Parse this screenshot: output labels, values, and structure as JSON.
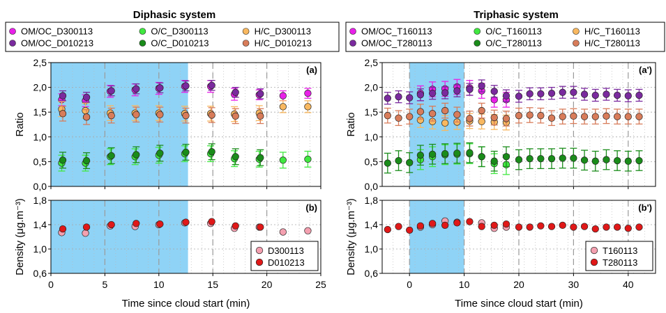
{
  "colors": {
    "shade": "#8fd3f6",
    "om_a": "#e820e8",
    "om_b": "#7a2a9e",
    "o_a": "#40e840",
    "o_b": "#1a8c1a",
    "h_a": "#f8b860",
    "h_b": "#d87c5a",
    "d_a": "#f4a0b0",
    "d_b": "#e01818"
  },
  "chart_data": [
    {
      "type": "scatter",
      "title": "Diphasic system",
      "tag": "(a)",
      "ylabel": "Ratio",
      "xlim": [
        0,
        25
      ],
      "ylim": [
        0,
        2.5
      ],
      "yticks": [
        "0,0",
        "0,5",
        "1,0",
        "1,5",
        "2,0",
        "2,5"
      ],
      "shaded_x": [
        0,
        12.7
      ],
      "series": [
        {
          "name": "OM/OC_D300113",
          "color_key": "om_a",
          "x": [
            1,
            3.2,
            5.5,
            7.8,
            10,
            12.4,
            14.8,
            17,
            19.3,
            21.5,
            23.8
          ],
          "y": [
            1.75,
            1.73,
            1.92,
            1.95,
            1.98,
            2.02,
            2.02,
            1.86,
            1.85,
            1.83,
            1.88
          ],
          "err": [
            0.12,
            0.12,
            0.12,
            0.12,
            0.12,
            0.12,
            0.12,
            0.12,
            0.1,
            0.1,
            0.1
          ]
        },
        {
          "name": "OM/OC_D010213",
          "color_key": "om_b",
          "x": [
            1.1,
            3.3,
            5.6,
            7.9,
            10.1,
            12.5,
            14.9,
            17.1,
            19.4
          ],
          "y": [
            1.83,
            1.8,
            1.93,
            1.97,
            1.99,
            2.03,
            2.04,
            1.9,
            1.87
          ],
          "err": [
            0.1,
            0.1,
            0.1,
            0.1,
            0.1,
            0.1,
            0.1,
            0.1,
            0.1
          ]
        },
        {
          "name": "O/C_D300113",
          "color_key": "o_a",
          "x": [
            1,
            3.2,
            5.5,
            7.8,
            10,
            12.4,
            14.8,
            17,
            19.3,
            21.5,
            23.8
          ],
          "y": [
            0.47,
            0.47,
            0.6,
            0.6,
            0.63,
            0.66,
            0.66,
            0.56,
            0.55,
            0.53,
            0.55
          ],
          "err": [
            0.16,
            0.16,
            0.16,
            0.16,
            0.16,
            0.16,
            0.16,
            0.16,
            0.16,
            0.16,
            0.16
          ]
        },
        {
          "name": "O/C_D010213",
          "color_key": "o_b",
          "x": [
            1.1,
            3.3,
            5.6,
            7.9,
            10.1,
            12.5,
            14.9,
            17.1,
            19.4
          ],
          "y": [
            0.53,
            0.52,
            0.62,
            0.64,
            0.67,
            0.69,
            0.7,
            0.6,
            0.58
          ],
          "err": [
            0.16,
            0.16,
            0.16,
            0.16,
            0.16,
            0.16,
            0.16,
            0.16,
            0.16
          ]
        },
        {
          "name": "H/C_D300113",
          "color_key": "h_a",
          "x": [
            1,
            3.2,
            5.5,
            7.8,
            10,
            12.4,
            14.8,
            17,
            19.3,
            21.5,
            23.8
          ],
          "y": [
            1.56,
            1.53,
            1.48,
            1.48,
            1.48,
            1.47,
            1.47,
            1.46,
            1.48,
            1.61,
            1.61
          ],
          "err": [
            0.15,
            0.15,
            0.15,
            0.15,
            0.15,
            0.15,
            0.15,
            0.15,
            0.15,
            0.12,
            0.12
          ]
        },
        {
          "name": "H/C_D010213",
          "color_key": "h_b",
          "x": [
            1.1,
            3.3,
            5.6,
            7.9,
            10.1,
            12.5,
            14.9,
            17.1,
            19.4
          ],
          "y": [
            1.47,
            1.4,
            1.43,
            1.45,
            1.45,
            1.43,
            1.44,
            1.42,
            1.42
          ],
          "err": [
            0.15,
            0.15,
            0.15,
            0.15,
            0.15,
            0.15,
            0.15,
            0.15,
            0.15
          ]
        }
      ]
    },
    {
      "type": "scatter",
      "title": "Triphasic system",
      "tag": "(a')",
      "ylabel": "Ratio",
      "xlim": [
        -5,
        45
      ],
      "ylim": [
        0,
        2.5
      ],
      "yticks": [
        "0,0",
        "0,5",
        "1,0",
        "1,5",
        "2,0",
        "2,5"
      ],
      "shaded_x": [
        0,
        10
      ],
      "series": [
        {
          "name": "OM/OC_T160113",
          "color_key": "om_a",
          "x": [
            2,
            4.2,
            6.5,
            8.7,
            11,
            13.2,
            15.5,
            17.7
          ],
          "y": [
            1.88,
            1.96,
            1.97,
            2.01,
            1.99,
            1.93,
            1.75,
            1.75
          ],
          "err": [
            0.15,
            0.15,
            0.15,
            0.15,
            0.15,
            0.15,
            0.15,
            0.15
          ]
        },
        {
          "name": "OM/OC_T280113",
          "color_key": "om_b",
          "x": [
            -4,
            -2,
            0,
            2,
            4.2,
            6.5,
            8.7,
            11,
            13.2,
            15.5,
            17.7,
            20,
            22,
            24,
            26,
            28,
            30,
            32,
            34,
            36,
            38,
            40,
            42
          ],
          "y": [
            1.78,
            1.81,
            1.79,
            1.85,
            1.88,
            1.89,
            1.93,
            1.96,
            2.03,
            1.92,
            1.83,
            1.82,
            1.87,
            1.87,
            1.88,
            1.9,
            1.9,
            1.86,
            1.84,
            1.86,
            1.84,
            1.83,
            1.84
          ],
          "err": [
            0.12,
            0.12,
            0.12,
            0.12,
            0.12,
            0.12,
            0.12,
            0.12,
            0.12,
            0.12,
            0.12,
            0.12,
            0.12,
            0.12,
            0.12,
            0.12,
            0.12,
            0.12,
            0.12,
            0.12,
            0.12,
            0.12,
            0.12
          ]
        },
        {
          "name": "O/C_T160113",
          "color_key": "o_a",
          "x": [
            2,
            4.2,
            6.5,
            8.7,
            11,
            13.2,
            15.5,
            17.7
          ],
          "y": [
            0.54,
            0.6,
            0.64,
            0.65,
            0.66,
            0.6,
            0.46,
            0.44
          ],
          "err": [
            0.2,
            0.2,
            0.2,
            0.2,
            0.2,
            0.2,
            0.2,
            0.2
          ]
        },
        {
          "name": "O/C_T280113",
          "color_key": "o_b",
          "x": [
            -4,
            -2,
            0,
            2,
            4.2,
            6.5,
            8.7,
            11,
            13.2,
            15.5,
            17.7,
            20,
            22,
            24,
            26,
            28,
            30,
            32,
            34,
            36,
            38,
            40,
            42
          ],
          "y": [
            0.47,
            0.52,
            0.48,
            0.63,
            0.65,
            0.66,
            0.67,
            0.68,
            0.6,
            0.51,
            0.6,
            0.54,
            0.56,
            0.56,
            0.56,
            0.57,
            0.57,
            0.53,
            0.51,
            0.54,
            0.52,
            0.51,
            0.52
          ],
          "err": [
            0.2,
            0.2,
            0.2,
            0.2,
            0.2,
            0.2,
            0.2,
            0.2,
            0.2,
            0.2,
            0.2,
            0.2,
            0.2,
            0.2,
            0.2,
            0.2,
            0.2,
            0.2,
            0.2,
            0.2,
            0.2,
            0.2,
            0.2
          ]
        },
        {
          "name": "H/C_T160113",
          "color_key": "h_a",
          "x": [
            2,
            4.2,
            6.5,
            8.7,
            11,
            13.2,
            15.5,
            17.7
          ],
          "y": [
            1.34,
            1.31,
            1.28,
            1.3,
            1.32,
            1.31,
            1.3,
            1.29
          ],
          "err": [
            0.15,
            0.15,
            0.15,
            0.15,
            0.15,
            0.15,
            0.15,
            0.15
          ]
        },
        {
          "name": "H/C_T280113",
          "color_key": "h_b",
          "x": [
            -4,
            -2,
            0,
            2,
            4.2,
            6.5,
            8.7,
            11,
            13.2,
            15.5,
            17.7,
            20,
            22,
            24,
            26,
            28,
            30,
            32,
            34,
            36,
            38,
            40,
            42
          ],
          "y": [
            1.43,
            1.38,
            1.41,
            1.51,
            1.47,
            1.53,
            1.45,
            1.37,
            1.53,
            1.39,
            1.37,
            1.43,
            1.44,
            1.43,
            1.38,
            1.41,
            1.42,
            1.41,
            1.41,
            1.42,
            1.41,
            1.41,
            1.41
          ],
          "err": [
            0.15,
            0.15,
            0.15,
            0.15,
            0.15,
            0.15,
            0.15,
            0.15,
            0.15,
            0.15,
            0.15,
            0.15,
            0.15,
            0.15,
            0.15,
            0.15,
            0.15,
            0.15,
            0.15,
            0.15,
            0.15,
            0.15,
            0.15
          ]
        }
      ]
    },
    {
      "type": "scatter",
      "tag": "(b)",
      "ylabel": "Density  (μg.m⁻³)",
      "xlabel": "Time since cloud start (min)",
      "xlim": [
        0,
        25
      ],
      "ylim": [
        0.6,
        1.8
      ],
      "xticks": [
        "0",
        "5",
        "10",
        "15",
        "20",
        "25"
      ],
      "yticks": [
        "0,6",
        "1,0",
        "1,4",
        "1,8"
      ],
      "shaded_x": [
        0,
        12.7
      ],
      "legend": "bottom-right",
      "series": [
        {
          "name": "D300113",
          "color_key": "d_a",
          "x": [
            1,
            3.2,
            5.5,
            7.8,
            10,
            12.4,
            14.8,
            17,
            19.3,
            21.5,
            23.8
          ],
          "y": [
            1.27,
            1.26,
            1.38,
            1.37,
            1.4,
            1.43,
            1.42,
            1.34,
            1.36,
            1.28,
            1.3
          ]
        },
        {
          "name": "D010213",
          "color_key": "d_b",
          "x": [
            1.1,
            3.3,
            5.6,
            7.9,
            10.1,
            12.5,
            14.9,
            17.1,
            19.4
          ],
          "y": [
            1.33,
            1.36,
            1.4,
            1.42,
            1.41,
            1.44,
            1.45,
            1.38,
            1.36
          ]
        }
      ]
    },
    {
      "type": "scatter",
      "tag": "(b')",
      "ylabel": "Density  (μg.m⁻³)",
      "xlabel": "Time since cloud start (min)",
      "xlim": [
        -5,
        45
      ],
      "ylim": [
        0.6,
        1.8
      ],
      "xticks": [
        "0",
        "10",
        "20",
        "30",
        "40"
      ],
      "yticks": [
        "0,6",
        "1,0",
        "1,4",
        "1,8"
      ],
      "shaded_x": [
        0,
        10
      ],
      "legend": "bottom-right",
      "series": [
        {
          "name": "T160113",
          "color_key": "d_a",
          "x": [
            2,
            4.2,
            6.5,
            8.7,
            13.2,
            15.5,
            17.7
          ],
          "y": [
            1.36,
            1.4,
            1.46,
            1.44,
            1.43,
            1.34,
            1.36
          ]
        },
        {
          "name": "T280113",
          "color_key": "d_b",
          "x": [
            -4,
            -2,
            0,
            2,
            4.2,
            6.5,
            8.7,
            11,
            13.2,
            15.5,
            17.7,
            20,
            22,
            24,
            26,
            28,
            30,
            32,
            34,
            36,
            38,
            40,
            42
          ],
          "y": [
            1.32,
            1.37,
            1.31,
            1.38,
            1.42,
            1.39,
            1.43,
            1.45,
            1.37,
            1.39,
            1.41,
            1.36,
            1.36,
            1.38,
            1.37,
            1.39,
            1.36,
            1.37,
            1.33,
            1.36,
            1.36,
            1.34,
            1.36
          ]
        }
      ]
    }
  ]
}
